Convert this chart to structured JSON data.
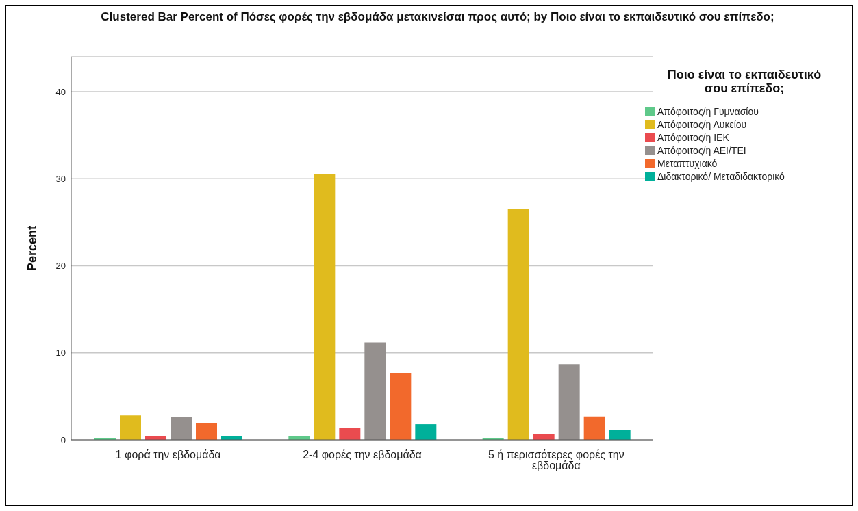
{
  "chart_data": {
    "type": "bar",
    "title": "Clustered Bar Percent of    Πόσες φορές την εβδομάδα μετακινείσαι προς αυτό; by    Ποιο είναι το εκπαιδευτικό σου επίπεδο;",
    "ylabel": "Percent",
    "legend_title": "Ποιο είναι το εκπαιδευτικό σου επίπεδο;",
    "categories": [
      "1 φορά την εβδομάδα",
      "2-4 φορές την εβδομάδα",
      "5 ή περισσότερες φορές την εβδομάδα"
    ],
    "series": [
      {
        "name": "Απόφοιτος/η Γυμνασίου",
        "color": "#5fc98a",
        "values": [
          0.2,
          0.4,
          0.2
        ]
      },
      {
        "name": "Απόφοιτος/η Λυκείου",
        "color": "#e0bb1e",
        "values": [
          2.8,
          30.5,
          26.5
        ]
      },
      {
        "name": "Απόφοιτος/η ΙΕΚ",
        "color": "#ea4b4f",
        "values": [
          0.4,
          1.4,
          0.7
        ]
      },
      {
        "name": "Απόφοιτος/η ΑΕΙ/ΤΕΙ",
        "color": "#95908e",
        "values": [
          2.6,
          11.2,
          8.7
        ]
      },
      {
        "name": "Μεταπτυχιακό",
        "color": "#f2692c",
        "values": [
          1.9,
          7.7,
          2.7
        ]
      },
      {
        "name": "Διδακτορικό/ Μεταδιδακτορικό",
        "color": "#00b09a",
        "values": [
          0.4,
          1.8,
          1.1
        ]
      }
    ],
    "ylim": [
      0,
      44
    ],
    "yticks": [
      0,
      10,
      20,
      30,
      40
    ],
    "grid": "y",
    "legend": "right"
  }
}
